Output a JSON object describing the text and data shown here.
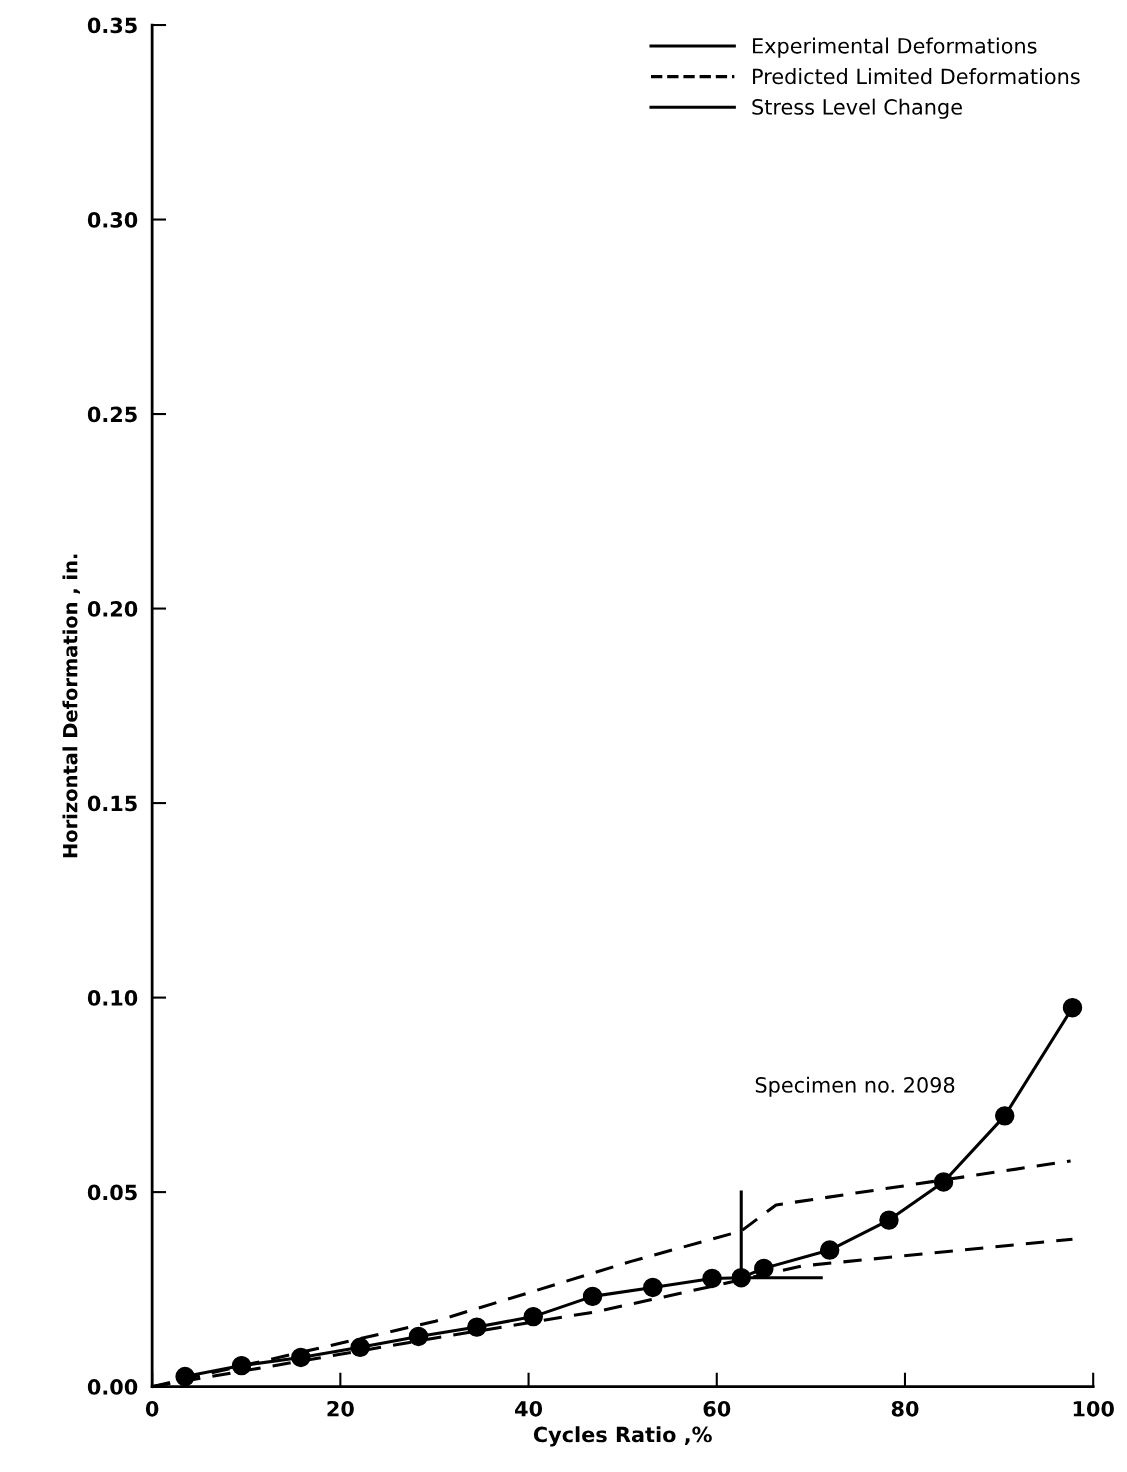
{
  "chart_data": {
    "type": "line",
    "xlabel": "Cycles Ratio ,%",
    "ylabel": "Horizontal Deformation , in.",
    "xlim": [
      0,
      100
    ],
    "ylim": [
      0,
      0.35
    ],
    "xticks": [
      0,
      20,
      40,
      60,
      80,
      100
    ],
    "yticks": [
      {
        "value": 0,
        "label": "0.00"
      },
      {
        "value": 0.05,
        "label": "0.05"
      },
      {
        "value": 0.1,
        "label": "0.10"
      },
      {
        "value": 0.15,
        "label": "0.15"
      },
      {
        "value": 0.2,
        "label": "0.20"
      },
      {
        "value": 0.25,
        "label": "0.25"
      },
      {
        "value": 0.3,
        "label": "0.30"
      },
      {
        "value": 0.35,
        "label": "0.35"
      }
    ],
    "grid": false,
    "legend": "top right",
    "annotations": [
      "Specimen no. 2098"
    ],
    "series": [
      {
        "name": "Experimental Deformations",
        "color": "#000000",
        "line_style": "solid",
        "marker": "circle",
        "x": [
          3.5,
          9.5,
          15.8,
          22.1,
          28.3,
          34.5,
          40.5,
          46.8,
          53.2,
          59.5,
          62.6,
          65.0,
          72.0,
          78.3,
          84.1,
          90.6,
          97.8
        ],
        "values": [
          0.0026,
          0.0054,
          0.0075,
          0.0101,
          0.0129,
          0.0153,
          0.018,
          0.0232,
          0.0255,
          0.0278,
          0.028,
          0.0304,
          0.0351,
          0.0428,
          0.0526,
          0.0696,
          0.0974
        ]
      },
      {
        "name": "Predicted Limited Deformations",
        "color": "#000000",
        "line_style": "dashed",
        "marker": "none",
        "x": [
          0,
          30.1,
          50.9,
          62.6,
          66.3,
          97.6
        ],
        "values": [
          0,
          0.0168,
          0.0322,
          0.04,
          0.0467,
          0.058
        ]
      },
      {
        "color": "#000000",
        "line_style": "dashed",
        "marker": "none",
        "x": [
          0,
          30.1,
          47.3,
          59.5,
          69.0,
          97.8
        ],
        "values": [
          0,
          0.0125,
          0.0193,
          0.0258,
          0.031,
          0.0379
        ]
      },
      {
        "name": "Stress Level Change",
        "color": "#000000",
        "line_style": "solid",
        "marker": "none",
        "x": [
          62.6,
          62.6,
          71.1
        ],
        "values": [
          0.05,
          0.028,
          0.028
        ]
      }
    ]
  }
}
